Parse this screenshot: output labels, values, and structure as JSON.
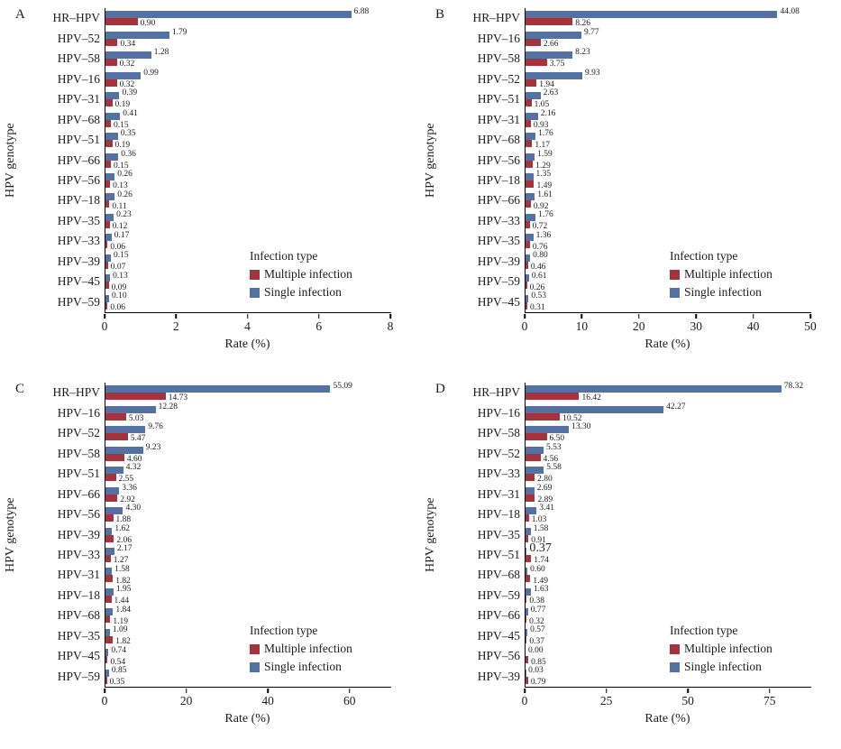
{
  "figure": {
    "xlabel": "Rate (%)",
    "ylabel": "HPV genotype",
    "legend_title": "Infection type",
    "colors": {
      "multiple_infection": "#A6333B",
      "single_infection": "#5372A3"
    }
  },
  "chart_data": [
    {
      "type": "bar",
      "orientation": "horizontal",
      "panel": "A",
      "xlabel": "Rate (%)",
      "ylabel": "HPV genotype",
      "legend_title": "Infection type",
      "legend_position": "inside-right",
      "grid": false,
      "xlim": [
        0,
        8
      ],
      "xticks": [
        0,
        2,
        4,
        6,
        8
      ],
      "categories": [
        "HR–HPV",
        "HPV–52",
        "HPV–58",
        "HPV–16",
        "HPV–31",
        "HPV–68",
        "HPV–51",
        "HPV–66",
        "HPV–56",
        "HPV–18",
        "HPV–35",
        "HPV–33",
        "HPV–39",
        "HPV–45",
        "HPV–59"
      ],
      "series": [
        {
          "key": "multiple",
          "name": "Multiple infection",
          "color": "#A6333B",
          "values": [
            0.9,
            0.34,
            0.32,
            0.32,
            0.19,
            0.15,
            0.19,
            0.15,
            0.13,
            0.11,
            0.12,
            0.06,
            0.07,
            0.09,
            0.06
          ],
          "labels": [
            "0.90",
            "0.34",
            "0.32",
            "0.32",
            "0.19",
            "0.15",
            "0.19",
            "0.15",
            "0.13",
            "0.11",
            "0.12",
            "0.06",
            "0.07",
            "0.09",
            "0.06"
          ]
        },
        {
          "key": "single",
          "name": "Single infection",
          "color": "#5372A3",
          "values": [
            6.88,
            1.79,
            1.28,
            0.99,
            0.39,
            0.41,
            0.35,
            0.36,
            0.26,
            0.26,
            0.23,
            0.17,
            0.15,
            0.13,
            0.1
          ],
          "labels": [
            "6.88",
            "1.79",
            "1.28",
            "0.99",
            "0.39",
            "0.41",
            "0.35",
            "0.36",
            "0.26",
            "0.26",
            "0.23",
            "0.17",
            "0.15",
            "0.13",
            "0.10"
          ]
        }
      ]
    },
    {
      "type": "bar",
      "orientation": "horizontal",
      "panel": "B",
      "xlabel": "Rate (%)",
      "ylabel": "HPV genotype",
      "legend_title": "Infection type",
      "legend_position": "inside-right",
      "grid": false,
      "xlim": [
        0,
        50
      ],
      "xticks": [
        0,
        10,
        20,
        30,
        40,
        50
      ],
      "categories": [
        "HR–HPV",
        "HPV–16",
        "HPV–58",
        "HPV–52",
        "HPV–51",
        "HPV–31",
        "HPV–68",
        "HPV–56",
        "HPV–18",
        "HPV–66",
        "HPV–33",
        "HPV–35",
        "HPV–39",
        "HPV–59",
        "HPV–45"
      ],
      "series": [
        {
          "key": "multiple",
          "name": "Multiple infection",
          "color": "#A6333B",
          "values": [
            8.26,
            2.66,
            3.75,
            1.94,
            1.05,
            0.93,
            1.17,
            1.29,
            1.49,
            0.92,
            0.72,
            0.76,
            0.46,
            0.26,
            0.31
          ],
          "labels": [
            "8.26",
            "2.66",
            "3.75",
            "1.94",
            "1.05",
            "0.93",
            "1.17",
            "1.29",
            "1.49",
            "0.92",
            "0.72",
            "0.76",
            "0.46",
            "0.26",
            "0.31"
          ]
        },
        {
          "key": "single",
          "name": "Single infection",
          "color": "#5372A3",
          "values": [
            44.08,
            9.77,
            8.23,
            9.93,
            2.63,
            2.16,
            1.76,
            1.59,
            1.35,
            1.61,
            1.76,
            1.36,
            0.8,
            0.61,
            0.53
          ],
          "labels": [
            "44.08",
            "9.77",
            "8.23",
            "9.93",
            "2.63",
            "2.16",
            "1.76",
            "1.59",
            "1.35",
            "1.61",
            "1.76",
            "1.36",
            "0.80",
            "0.61",
            "0.53"
          ]
        }
      ]
    },
    {
      "type": "bar",
      "orientation": "horizontal",
      "panel": "C",
      "xlabel": "Rate (%)",
      "ylabel": "HPV genotype",
      "legend_title": "Infection type",
      "legend_position": "inside-right",
      "grid": false,
      "xlim": [
        0,
        70
      ],
      "xticks": [
        0,
        20,
        40,
        60
      ],
      "categories": [
        "HR–HPV",
        "HPV–16",
        "HPV–52",
        "HPV–58",
        "HPV–51",
        "HPV–66",
        "HPV–56",
        "HPV–39",
        "HPV–33",
        "HPV–31",
        "HPV–18",
        "HPV–68",
        "HPV–35",
        "HPV–45",
        "HPV–59"
      ],
      "series": [
        {
          "key": "multiple",
          "name": "Multiple infection",
          "color": "#A6333B",
          "values": [
            14.73,
            5.03,
            5.47,
            4.6,
            2.55,
            2.92,
            1.88,
            2.06,
            1.27,
            1.82,
            1.44,
            1.19,
            1.82,
            0.54,
            0.35
          ],
          "labels": [
            "14.73",
            "5.03",
            "5.47",
            "4.60",
            "2.55",
            "2.92",
            "1.88",
            "2.06",
            "1.27",
            "1.82",
            "1.44",
            "1.19",
            "1.82",
            "0.54",
            "0.35"
          ]
        },
        {
          "key": "single",
          "name": "Single infection",
          "color": "#5372A3",
          "values": [
            55.09,
            12.28,
            9.76,
            9.23,
            4.32,
            3.36,
            4.3,
            1.62,
            2.17,
            1.58,
            1.95,
            1.84,
            1.09,
            0.74,
            0.85
          ],
          "labels": [
            "55.09",
            "12.28",
            "9.76",
            "9.23",
            "4.32",
            "3.36",
            "4.30",
            "1.62",
            "2.17",
            "1.58",
            "1.95",
            "1.84",
            "1.09",
            "0.74",
            "0.85"
          ]
        }
      ]
    },
    {
      "type": "bar",
      "orientation": "horizontal",
      "panel": "D",
      "xlabel": "Rate (%)",
      "ylabel": "HPV genotype",
      "legend_title": "Infection type",
      "legend_position": "inside-right",
      "grid": false,
      "xlim": [
        0,
        87.5
      ],
      "xticks": [
        0,
        25,
        50,
        75
      ],
      "emphasis": {
        "series_key": "single",
        "category_index": 8
      },
      "categories": [
        "HR–HPV",
        "HPV–16",
        "HPV–58",
        "HPV–52",
        "HPV–33",
        "HPV–31",
        "HPV–18",
        "HPV–35",
        "HPV–51",
        "HPV–68",
        "HPV–59",
        "HPV–66",
        "HPV–45",
        "HPV–56",
        "HPV–39"
      ],
      "series": [
        {
          "key": "multiple",
          "name": "Multiple infection",
          "color": "#A6333B",
          "values": [
            16.42,
            10.52,
            6.5,
            4.56,
            2.8,
            2.89,
            1.03,
            0.91,
            1.74,
            1.49,
            0.38,
            0.32,
            0.37,
            0.85,
            0.79
          ],
          "labels": [
            "16.42",
            "10.52",
            "6.50",
            "4.56",
            "2.80",
            "2.89",
            "1.03",
            "0.91",
            "1.74",
            "1.49",
            "0.38",
            "0.32",
            "0.37",
            "0.85",
            "0.79"
          ]
        },
        {
          "key": "single",
          "name": "Single infection",
          "color": "#5372A3",
          "values": [
            78.32,
            42.27,
            13.3,
            5.53,
            5.58,
            2.69,
            3.41,
            1.58,
            0.37,
            0.6,
            1.63,
            0.77,
            0.57,
            0.0,
            0.03
          ],
          "labels": [
            "78.32",
            "42.27",
            "13.30",
            "5.53",
            "5.58",
            "2.69",
            "3.41",
            "1.58",
            "0.37",
            "0.60",
            "1.63",
            "0.77",
            "0.57",
            "0.00",
            "0.03"
          ]
        }
      ]
    }
  ]
}
